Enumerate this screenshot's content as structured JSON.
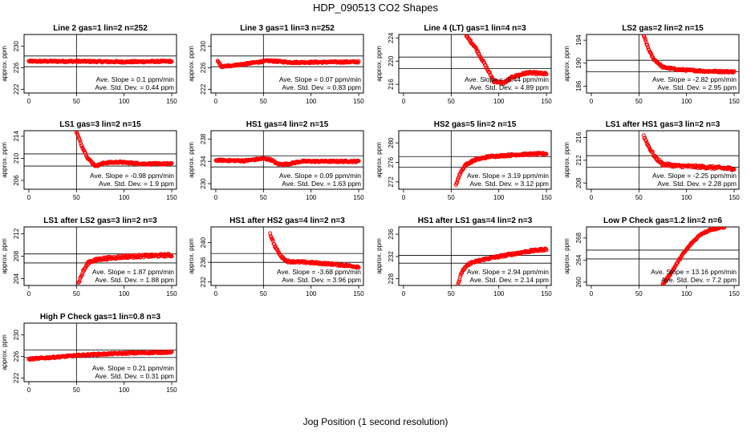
{
  "figure": {
    "title": "HDP_090513  CO2 Shapes",
    "xlabel": "Jog Position (1 second resolution)",
    "colors": {
      "points": "#ff0000",
      "axes": "#000000"
    }
  },
  "chart_data": [
    {
      "type": "scatter",
      "title": "Line 2 gas=1 lin=2 n=252",
      "ylabel": "approx. ppm",
      "xlim": [
        -5,
        155
      ],
      "ylim": [
        221.3,
        232.2
      ],
      "yticks": [
        222,
        226,
        230
      ],
      "xticks": [
        0,
        50,
        100,
        150
      ],
      "hlines": [
        228.2,
        226.2
      ],
      "slope_text": "Ave. Slope = 0.1 ppm/min",
      "std_text": "Ave. Std. Dev. = 0.44 ppm",
      "curve": [
        [
          0,
          227.2
        ],
        [
          50,
          227.2
        ],
        [
          100,
          227.1
        ],
        [
          150,
          227.2
        ]
      ],
      "noise": 0.15
    },
    {
      "type": "scatter",
      "title": "Line 3 gas=1 lin=3 n=252",
      "ylabel": "approx. ppm",
      "xlim": [
        -5,
        155
      ],
      "ylim": [
        221.3,
        232.2
      ],
      "yticks": [
        222,
        226,
        230
      ],
      "xticks": [
        0,
        50,
        100,
        150
      ],
      "hlines": [
        228.2,
        226.2
      ],
      "slope_text": "Ave. Slope = 0.07 ppm/min",
      "std_text": "Ave. Std. Dev. = 0.83 ppm",
      "curve": [
        [
          2,
          227.2
        ],
        [
          6,
          226.2
        ],
        [
          30,
          226.7
        ],
        [
          55,
          227.3
        ],
        [
          80,
          227.0
        ],
        [
          150,
          227.1
        ]
      ],
      "noise": 0.15
    },
    {
      "type": "scatter",
      "title": "Line 4 (LT) gas=1 lin=4 n=3",
      "ylabel": "approx. ppm",
      "xlim": [
        -5,
        155
      ],
      "ylim": [
        214.5,
        224.6
      ],
      "yticks": [
        216,
        220,
        224
      ],
      "xticks": [
        0,
        50,
        100,
        150
      ],
      "hlines": [
        220.7,
        218.7
      ],
      "slope_text": "Ave. Slope = -5.44 ppm/min",
      "std_text": "Ave. Std. Dev. = 4.89 ppm",
      "curve": [
        [
          66,
          224.3
        ],
        [
          75,
          222.5
        ],
        [
          85,
          219.5
        ],
        [
          95,
          216.5
        ],
        [
          105,
          216.2
        ],
        [
          115,
          217.3
        ],
        [
          130,
          218.0
        ],
        [
          150,
          217.8
        ]
      ],
      "noise": 0.2
    },
    {
      "type": "scatter",
      "title": "LS2 gas=2 lin=2 n=15",
      "ylabel": "approx. ppm",
      "xlim": [
        -5,
        155
      ],
      "ylim": [
        184.8,
        195.0
      ],
      "yticks": [
        186,
        190,
        194
      ],
      "xticks": [
        0,
        50,
        100,
        150
      ],
      "hlines": [
        190.5,
        188.5
      ],
      "slope_text": "Ave. Slope = -2.82 ppm/min",
      "std_text": "Ave. Std. Dev. = 2.95 ppm",
      "curve": [
        [
          55,
          194.8
        ],
        [
          60,
          192.5
        ],
        [
          65,
          190.8
        ],
        [
          75,
          189.3
        ],
        [
          90,
          188.9
        ],
        [
          120,
          188.6
        ],
        [
          150,
          188.5
        ]
      ],
      "noise": 0.15
    },
    {
      "type": "scatter",
      "title": "LS1 gas=3 lin=2 n=15",
      "ylabel": "approx. ppm",
      "xlim": [
        -5,
        155
      ],
      "ylim": [
        204.4,
        215.0
      ],
      "yticks": [
        206,
        210,
        214
      ],
      "xticks": [
        0,
        50,
        100,
        150
      ],
      "hlines": [
        210.8,
        208.6
      ],
      "slope_text": "Ave. Slope = -0.98 ppm/min",
      "std_text": "Ave. Std. Dev. = 1.9 ppm",
      "curve": [
        [
          50,
          214.8
        ],
        [
          55,
          212.5
        ],
        [
          62,
          210.0
        ],
        [
          70,
          208.6
        ],
        [
          80,
          209.2
        ],
        [
          95,
          209.3
        ],
        [
          120,
          209.0
        ],
        [
          150,
          209.0
        ]
      ],
      "noise": 0.15
    },
    {
      "type": "scatter",
      "title": "HS1 gas=4 lin=2 n=15",
      "ylabel": "approx. ppm",
      "xlim": [
        -5,
        155
      ],
      "ylim": [
        229.0,
        239.5
      ],
      "yticks": [
        230,
        234,
        238
      ],
      "xticks": [
        0,
        50,
        100,
        150
      ],
      "hlines": [
        235.0,
        233.0
      ],
      "slope_text": "Ave. Slope = 0.09 ppm/min",
      "std_text": "Ave. Std. Dev. = 1.63 ppm",
      "curve": [
        [
          0,
          234.2
        ],
        [
          30,
          234.1
        ],
        [
          50,
          234.5
        ],
        [
          58,
          234.3
        ],
        [
          65,
          233.5
        ],
        [
          75,
          233.5
        ],
        [
          90,
          234.0
        ],
        [
          150,
          234.0
        ]
      ],
      "noise": 0.15
    },
    {
      "type": "scatter",
      "title": "HS2 gas=5 lin=2 n=15",
      "ylabel": "approx. ppm",
      "xlim": [
        -5,
        155
      ],
      "ylim": [
        270.5,
        282.5
      ],
      "yticks": [
        272,
        276,
        280
      ],
      "xticks": [
        0,
        50,
        100,
        150
      ],
      "hlines": [
        277.2,
        275.0
      ],
      "slope_text": "Ave. Slope = 3.19 ppm/min",
      "std_text": "Ave. Std. Dev. = 3.12 ppm",
      "curve": [
        [
          55,
          271.5
        ],
        [
          60,
          274.0
        ],
        [
          65,
          275.5
        ],
        [
          75,
          276.5
        ],
        [
          90,
          277.2
        ],
        [
          120,
          277.6
        ],
        [
          150,
          277.8
        ]
      ],
      "noise": 0.2
    },
    {
      "type": "scatter",
      "title": "LS1 after HS1 gas=3 lin=2 n=3",
      "ylabel": "approx. ppm",
      "xlim": [
        -5,
        155
      ],
      "ylim": [
        206.9,
        217.2
      ],
      "yticks": [
        208,
        212,
        216
      ],
      "xticks": [
        0,
        50,
        100,
        150
      ],
      "hlines": [
        212.8,
        210.8
      ],
      "slope_text": "Ave. Slope = -2.25 ppm/min",
      "std_text": "Ave. Std. Dev. = 2.28 ppm",
      "curve": [
        [
          55,
          216.3
        ],
        [
          60,
          214.5
        ],
        [
          67,
          212.5
        ],
        [
          75,
          211.3
        ],
        [
          90,
          211.0
        ],
        [
          120,
          210.8
        ],
        [
          150,
          210.5
        ]
      ],
      "noise": 0.25
    },
    {
      "type": "scatter",
      "title": "LS1 after LS2 gas=3 lin=2 n=3",
      "ylabel": "approx. ppm",
      "xlim": [
        -5,
        155
      ],
      "ylim": [
        202.8,
        213.2
      ],
      "yticks": [
        204,
        208,
        212
      ],
      "xticks": [
        0,
        50,
        100,
        150
      ],
      "hlines": [
        208.4,
        206.8
      ],
      "slope_text": "Ave. Slope = 1.87 ppm/min",
      "std_text": "Ave. Std. Dev. = 1.88 ppm",
      "curve": [
        [
          52,
          203.2
        ],
        [
          57,
          205.3
        ],
        [
          63,
          207.0
        ],
        [
          75,
          207.5
        ],
        [
          100,
          207.9
        ],
        [
          150,
          208.2
        ]
      ],
      "noise": 0.25
    },
    {
      "type": "scatter",
      "title": "HS1 after HS2 gas=4 lin=2 n=3",
      "ylabel": "approx. ppm",
      "xlim": [
        -5,
        155
      ],
      "ylim": [
        231.3,
        243.2
      ],
      "yticks": [
        232,
        236,
        240
      ],
      "xticks": [
        0,
        50,
        100,
        150
      ],
      "hlines": [
        237.8,
        236.0
      ],
      "slope_text": "Ave. Slope = -3.68 ppm/min",
      "std_text": "Ave. Std. Dev. = 3.96 ppm",
      "curve": [
        [
          57,
          241.8
        ],
        [
          62,
          239.3
        ],
        [
          68,
          237.3
        ],
        [
          75,
          236.2
        ],
        [
          95,
          236.0
        ],
        [
          125,
          235.6
        ],
        [
          150,
          235.1
        ]
      ],
      "noise": 0.2
    },
    {
      "type": "scatter",
      "title": "HS1 after LS1 gas=4 lin=2 n=3",
      "ylabel": "approx. ppm",
      "xlim": [
        -5,
        155
      ],
      "ylim": [
        226.8,
        237.3
      ],
      "yticks": [
        228,
        232,
        236
      ],
      "xticks": [
        0,
        50,
        100,
        150
      ],
      "hlines": [
        232.2,
        230.8
      ],
      "slope_text": "Ave. Slope = 2.94 ppm/min",
      "std_text": "Ave. Std. Dev. = 2.14 ppm",
      "curve": [
        [
          57,
          227.0
        ],
        [
          62,
          229.5
        ],
        [
          70,
          230.8
        ],
        [
          85,
          231.5
        ],
        [
          110,
          232.3
        ],
        [
          130,
          232.9
        ],
        [
          150,
          233.3
        ]
      ],
      "noise": 0.2
    },
    {
      "type": "scatter",
      "title": "Low P Check gas=1.2 lin=2 n=6",
      "ylabel": "approx. ppm",
      "xlim": [
        -5,
        155
      ],
      "ylim": [
        259.4,
        270.0
      ],
      "yticks": [
        260,
        264,
        268
      ],
      "xticks": [
        0,
        50,
        100,
        150
      ],
      "hlines": [
        265.8,
        264.2
      ],
      "slope_text": "Ave. Slope = 13.16 ppm/min",
      "std_text": "Ave. Std. Dev. = 7.2 ppm",
      "curve": [
        [
          75,
          259.5
        ],
        [
          85,
          262.0
        ],
        [
          95,
          264.8
        ],
        [
          105,
          267.0
        ],
        [
          115,
          268.7
        ],
        [
          125,
          269.5
        ],
        [
          140,
          270.0
        ]
      ],
      "noise": 0.15
    },
    {
      "type": "scatter",
      "title": "High P Check gas=1 lin=0.8 n=3",
      "ylabel": "approx. ppm",
      "xlim": [
        -5,
        155
      ],
      "ylim": [
        221.3,
        232.2
      ],
      "yticks": [
        222,
        226,
        230
      ],
      "xticks": [
        0,
        50,
        100,
        150
      ],
      "hlines": [
        227.2,
        225.8
      ],
      "slope_text": "Ave. Slope = 0.21 ppm/min",
      "std_text": "Ave. Std. Dev. = 0.31 ppm",
      "curve": [
        [
          0,
          225.5
        ],
        [
          30,
          225.9
        ],
        [
          60,
          226.3
        ],
        [
          100,
          226.6
        ],
        [
          150,
          226.8
        ]
      ],
      "noise": 0.15
    }
  ]
}
